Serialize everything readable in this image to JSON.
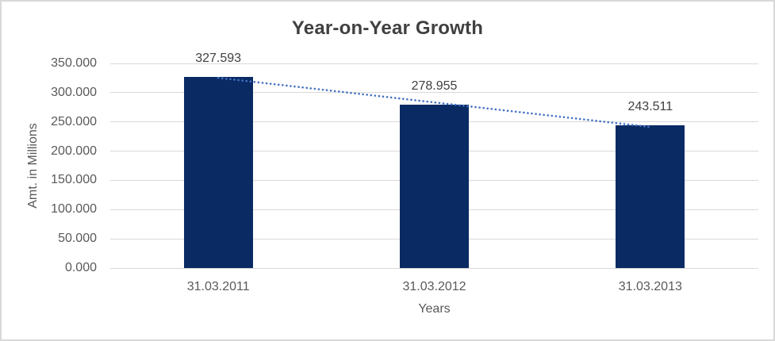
{
  "frame": {
    "background": "#ffffff",
    "border_color": "#d9d9d9"
  },
  "chart_data": {
    "type": "bar",
    "title": "Year-on-Year Growth",
    "xlabel": "Years",
    "ylabel": "Amt. in Millions",
    "categories": [
      "31.03.2011",
      "31.03.2012",
      "31.03.2013"
    ],
    "values": [
      327.593,
      278.955,
      243.511
    ],
    "data_labels": [
      "327.593",
      "278.955",
      "243.511"
    ],
    "y_ticks": [
      "0.000",
      "50.000",
      "100.000",
      "150.000",
      "200.000",
      "250.000",
      "300.000",
      "350.000"
    ],
    "ylim": [
      0,
      350
    ],
    "grid": true,
    "legend": "none",
    "trendline": {
      "type": "linear",
      "style": "dotted",
      "color": "#4472c4"
    },
    "colors": {
      "bar": "#0a2a64",
      "gridline": "#d9d9d9",
      "title": "#404040",
      "axis_text": "#595959",
      "data_label_text": "#404040"
    }
  }
}
